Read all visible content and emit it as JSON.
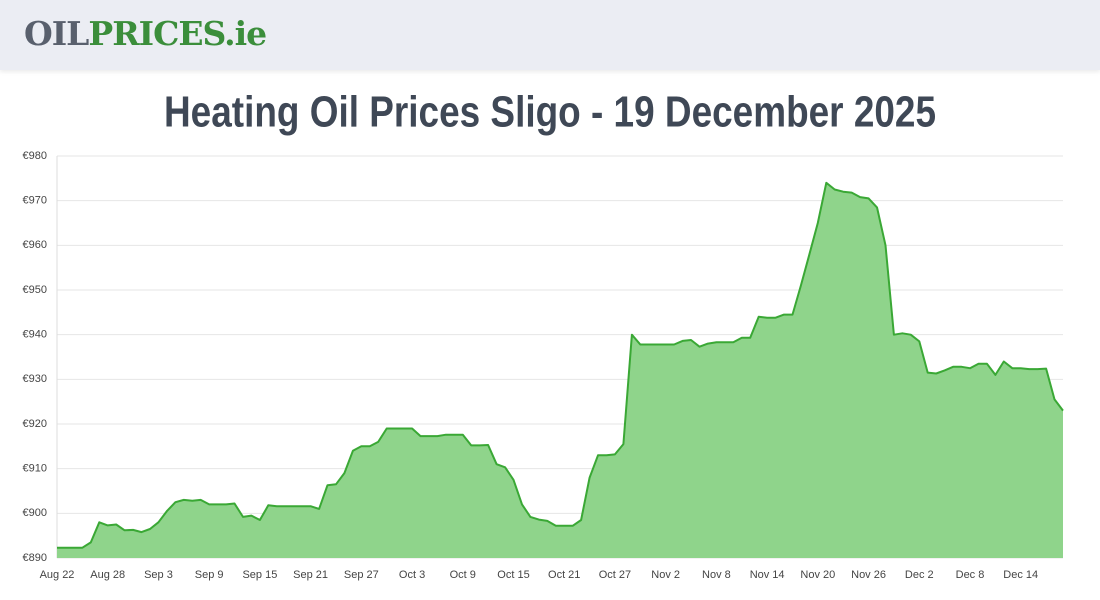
{
  "header": {
    "logo": [
      "OIL",
      "PRICES",
      ".ie"
    ]
  },
  "chart_data": {
    "type": "area",
    "title": "Heating Oil Prices Sligo - 19 December 2025",
    "categories": [
      "Aug 22",
      null,
      null,
      null,
      null,
      null,
      "Aug 28",
      null,
      null,
      null,
      null,
      null,
      "Sep 3",
      null,
      null,
      null,
      null,
      null,
      "Sep 9",
      null,
      null,
      null,
      null,
      null,
      "Sep 15",
      null,
      null,
      null,
      null,
      null,
      "Sep 21",
      null,
      null,
      null,
      null,
      null,
      "Sep 27",
      null,
      null,
      null,
      null,
      null,
      "Oct 3",
      null,
      null,
      null,
      null,
      null,
      "Oct 9",
      null,
      null,
      null,
      null,
      null,
      "Oct 15",
      null,
      null,
      null,
      null,
      null,
      "Oct 21",
      null,
      null,
      null,
      null,
      null,
      "Oct 27",
      null,
      null,
      null,
      null,
      null,
      "Nov 2",
      null,
      null,
      null,
      null,
      null,
      "Nov 8",
      null,
      null,
      null,
      null,
      null,
      "Nov 14",
      null,
      null,
      null,
      null,
      null,
      "Nov 20",
      null,
      null,
      null,
      null,
      null,
      "Nov 26",
      null,
      null,
      null,
      null,
      null,
      "Dec 2",
      null,
      null,
      null,
      null,
      null,
      "Dec 8",
      null,
      null,
      null,
      null,
      null,
      "Dec 14",
      null,
      null,
      null,
      null,
      null
    ],
    "values": [
      892.3,
      892.3,
      892.3,
      892.3,
      893.5,
      898,
      897.3,
      897.5,
      896.2,
      896.3,
      895.8,
      896.5,
      898,
      900.5,
      902.5,
      903,
      902.8,
      903,
      902,
      902,
      902,
      902.2,
      899.2,
      899.5,
      898.5,
      901.8,
      901.6,
      901.6,
      901.6,
      901.6,
      901.6,
      901,
      906.3,
      906.5,
      909,
      914,
      915,
      915,
      916,
      919,
      919,
      919,
      919,
      917.3,
      917.3,
      917.3,
      917.6,
      917.6,
      917.6,
      915.2,
      915.2,
      915.3,
      911,
      910.3,
      907.5,
      902,
      899.2,
      898.6,
      898.3,
      897.2,
      897.2,
      897.2,
      898.5,
      908,
      913,
      913,
      913.2,
      915.5,
      940,
      937.8,
      937.8,
      937.8,
      937.8,
      937.8,
      938.6,
      938.8,
      937.3,
      938,
      938.3,
      938.3,
      938.3,
      939.3,
      939.3,
      944,
      943.8,
      943.8,
      944.5,
      944.5,
      951,
      958,
      965,
      974,
      972.5,
      972,
      971.8,
      970.8,
      970.5,
      968.5,
      960,
      940,
      940.3,
      940,
      938.5,
      931.5,
      931.3,
      932,
      932.8,
      932.8,
      932.5,
      933.5,
      933.5,
      931,
      934,
      932.5,
      932.5,
      932.3,
      932.3,
      932.4,
      925.5,
      923
    ],
    "line_color": "#3aa835",
    "fill_color": "#8fd48b",
    "ylim": [
      890,
      980
    ],
    "yticks": [
      {
        "value": 890,
        "label": "€890"
      },
      {
        "value": 900,
        "label": "€900"
      },
      {
        "value": 910,
        "label": "€910"
      },
      {
        "value": 920,
        "label": "€920"
      },
      {
        "value": 930,
        "label": "€930"
      },
      {
        "value": 940,
        "label": "€940"
      },
      {
        "value": 950,
        "label": "€950"
      },
      {
        "value": 960,
        "label": "€960"
      },
      {
        "value": 970,
        "label": "€970"
      },
      {
        "value": 980,
        "label": "€980"
      }
    ],
    "grid": true
  }
}
